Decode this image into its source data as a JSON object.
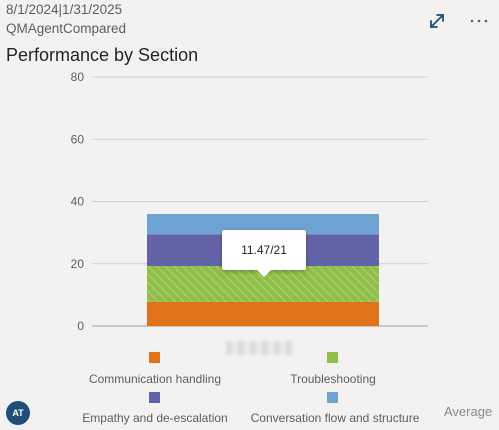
{
  "header": {
    "date_range": "8/1/2024|1/31/2025",
    "subtitle": "QMAgentCompared",
    "title": "Performance by Section"
  },
  "toolbar": {
    "expand_icon": "expand-diagonal-icon",
    "more_icon": "more-options-icon",
    "more_label": "···"
  },
  "tooltip": {
    "text": "11.47/21"
  },
  "colors": {
    "communication": "#e0731a",
    "troubleshooting": "#8fbf4a",
    "empathy": "#6264a7",
    "conversation": "#6fa3d4"
  },
  "chart_data": {
    "type": "bar",
    "stacked": true,
    "categories": [
      ""
    ],
    "ylim": [
      0,
      80
    ],
    "yticks": [
      0,
      20,
      40,
      60,
      80
    ],
    "grid": true,
    "legend_position": "bottom",
    "series": [
      {
        "name": "Communication handling",
        "values": [
          7.8
        ]
      },
      {
        "name": "Troubleshooting",
        "values": [
          11.47
        ]
      },
      {
        "name": "Empathy and de-escalation",
        "values": [
          10.2
        ]
      },
      {
        "name": "Conversation flow and structure",
        "values": [
          6.5
        ]
      }
    ]
  },
  "legend": {
    "items": [
      {
        "label": "Communication handling"
      },
      {
        "label": "Troubleshooting"
      },
      {
        "label": "Empathy and de-escalation"
      },
      {
        "label": "Conversation flow and structure"
      }
    ]
  },
  "footer": {
    "avatar_initials": "AT",
    "average_label": "Average"
  }
}
